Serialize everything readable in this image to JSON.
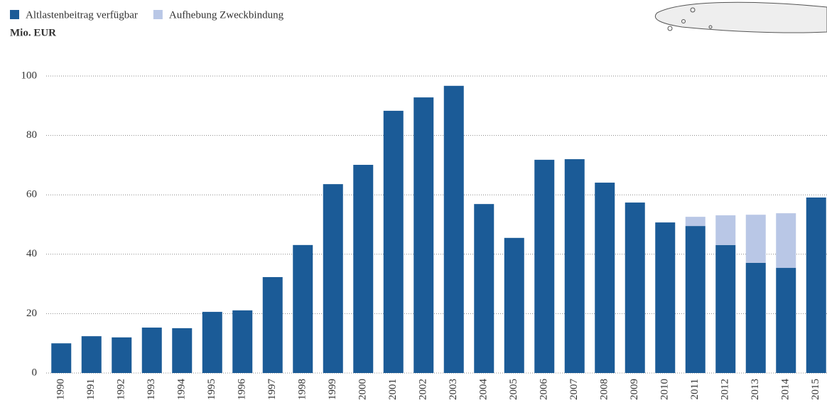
{
  "chart_data": {
    "type": "stacked-bar",
    "y_label": "Mio. EUR",
    "categories": [
      "1990",
      "1991",
      "1992",
      "1993",
      "1994",
      "1995",
      "1996",
      "1997",
      "1998",
      "1999",
      "2000",
      "2001",
      "2002",
      "2003",
      "2004",
      "2005",
      "2006",
      "2007",
      "2008",
      "2009",
      "2010",
      "2011",
      "2012",
      "2013",
      "2014",
      "2015"
    ],
    "series": [
      {
        "name": "Altlastenbeitrag verfügbar",
        "color": "#1b5b97",
        "values": [
          10,
          12.4,
          12,
          15.3,
          15.1,
          20.6,
          21.1,
          32.3,
          43.1,
          63.6,
          70.1,
          88.3,
          92.8,
          96.7,
          56.9,
          45.5,
          71.8,
          72,
          64.1,
          57.4,
          50.7,
          49.5,
          43.1,
          37.1,
          35.4,
          59.1
        ]
      },
      {
        "name": "Aufhebung Zweckbindung",
        "color": "#b9c7e6",
        "values": [
          0,
          0,
          0,
          0,
          0,
          0,
          0,
          0,
          0,
          0,
          0,
          0,
          0,
          0,
          0,
          0,
          0,
          0,
          0,
          0,
          0,
          3.1,
          10,
          16.2,
          18.4,
          0
        ]
      }
    ],
    "ylim": [
      0,
      100
    ],
    "yticks": [
      0,
      20,
      40,
      60,
      80,
      100
    ],
    "grid": true,
    "legend": "top-left"
  }
}
